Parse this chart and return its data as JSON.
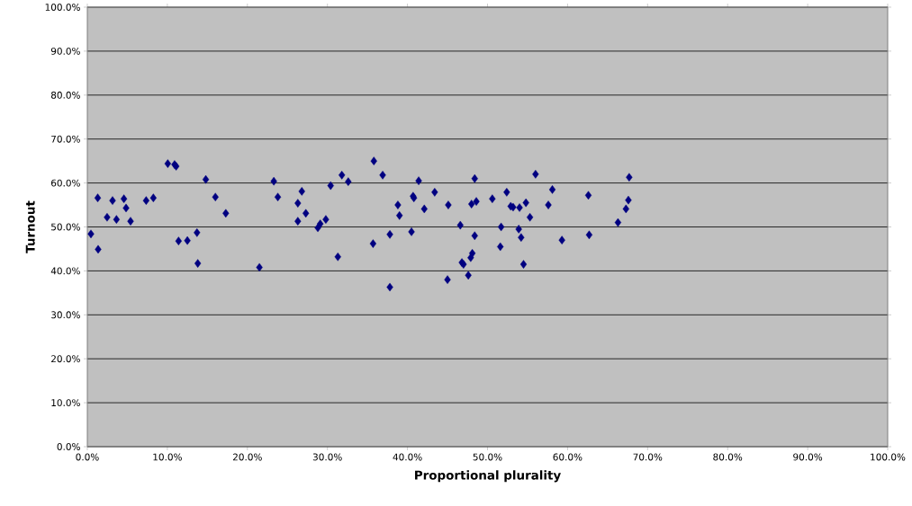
{
  "chart_data": {
    "type": "scatter",
    "xlabel": "Proportional plurality",
    "ylabel": "Turnout",
    "series": [
      {
        "color": "#000080",
        "x": [
          0.45,
          1.3,
          1.35,
          2.47,
          3.15,
          3.64,
          4.57,
          4.84,
          5.4,
          7.35,
          8.25,
          10.05,
          10.9,
          11.1,
          11.4,
          12.5,
          13.7,
          13.8,
          14.8,
          16.0,
          17.3,
          21.5,
          23.3,
          23.8,
          26.3,
          26.8,
          27.3,
          26.3,
          28.8,
          29.1,
          29.8,
          30.4,
          31.3,
          31.8,
          32.6,
          35.8,
          35.7,
          36.9,
          37.8,
          37.8,
          38.8,
          39.0,
          40.5,
          40.7,
          40.8,
          41.4,
          42.1,
          43.4,
          45.0,
          45.1,
          46.6,
          46.8,
          47.0,
          47.6,
          47.9,
          48.1,
          48.0,
          48.6,
          48.4,
          48.4,
          50.6,
          51.6,
          51.7,
          52.4,
          52.9,
          53.2,
          54.0,
          53.9,
          54.2,
          54.5,
          54.8,
          55.3,
          56.0,
          57.6,
          58.1,
          59.3,
          62.6,
          62.7,
          66.3,
          67.3,
          67.6,
          67.7
        ],
        "values": [
          48.4,
          56.6,
          44.9,
          52.2,
          56.0,
          51.7,
          56.4,
          54.3,
          51.3,
          56.0,
          56.6,
          64.4,
          64.2,
          63.8,
          46.8,
          46.9,
          48.7,
          41.7,
          60.8,
          56.8,
          53.1,
          40.8,
          60.4,
          56.8,
          55.4,
          58.1,
          53.1,
          51.3,
          49.8,
          50.7,
          51.7,
          59.4,
          43.2,
          61.8,
          60.3,
          65.0,
          46.2,
          61.8,
          36.3,
          48.3,
          55.0,
          52.6,
          48.9,
          57.0,
          56.6,
          60.5,
          54.1,
          57.9,
          38.0,
          55.0,
          50.4,
          41.9,
          41.5,
          39.0,
          43.0,
          44.0,
          55.2,
          55.8,
          61.0,
          48.0,
          56.4,
          45.5,
          50.0,
          57.9,
          54.7,
          54.5,
          54.4,
          49.5,
          47.6,
          41.5,
          55.5,
          52.2,
          62.0,
          55.0,
          58.5,
          47.0,
          57.2,
          48.2,
          51.0,
          54.1,
          56.1,
          61.3
        ]
      }
    ],
    "marker": "diamond",
    "grid": "y",
    "xlim": [
      0,
      100
    ],
    "ylim": [
      0,
      100
    ],
    "xticks": [
      {
        "value": 0,
        "label": "0.0%"
      },
      {
        "value": 10,
        "label": "10.0%"
      },
      {
        "value": 20,
        "label": "20.0%"
      },
      {
        "value": 30,
        "label": "30.0%"
      },
      {
        "value": 40,
        "label": "40.0%"
      },
      {
        "value": 50,
        "label": "50.0%"
      },
      {
        "value": 60,
        "label": "60.0%"
      },
      {
        "value": 70,
        "label": "70.0%"
      },
      {
        "value": 80,
        "label": "80.0%"
      },
      {
        "value": 90,
        "label": "90.0%"
      },
      {
        "value": 100,
        "label": "100.0%"
      }
    ],
    "yticks": [
      {
        "value": 0,
        "label": "0.0%"
      },
      {
        "value": 10,
        "label": "10.0%"
      },
      {
        "value": 20,
        "label": "20.0%"
      },
      {
        "value": 30,
        "label": "30.0%"
      },
      {
        "value": 40,
        "label": "40.0%"
      },
      {
        "value": 50,
        "label": "50.0%"
      },
      {
        "value": 60,
        "label": "60.0%"
      },
      {
        "value": 70,
        "label": "70.0%"
      },
      {
        "value": 80,
        "label": "80.0%"
      },
      {
        "value": 90,
        "label": "90.0%"
      },
      {
        "value": 100,
        "label": "100.0%"
      }
    ]
  }
}
